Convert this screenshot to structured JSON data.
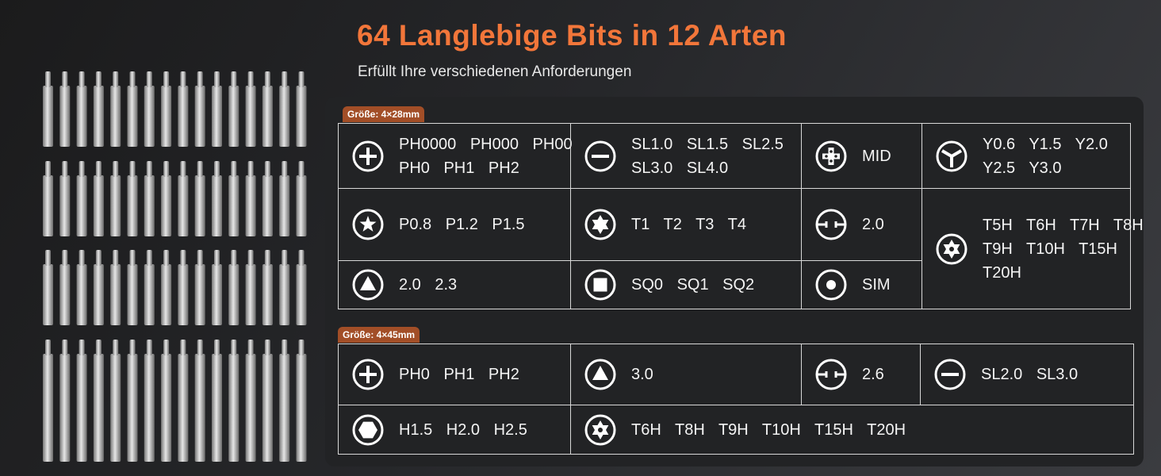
{
  "header": {
    "title": "64 Langlebige Bits in 12 Arten",
    "subtitle": "Erfüllt Ihre verschiedenen Anforderungen"
  },
  "tables": [
    {
      "size": "Größe: 4×28mm",
      "cells": [
        {
          "lines": [
            "PH0000 PH000 PH00",
            "PH0 PH1 PH2"
          ]
        },
        {
          "lines": [
            "SL1.0 SL1.5 SL2.5",
            "SL3.0 SL4.0"
          ]
        },
        {
          "lines": [
            "MID"
          ]
        },
        {
          "lines": [
            "Y0.6 Y1.5 Y2.0",
            "Y2.5 Y3.0"
          ]
        },
        {
          "lines": [
            "P0.8 P1.2 P1.5"
          ]
        },
        {
          "lines": [
            "T1 T2 T3 T4"
          ]
        },
        {
          "lines": [
            "2.0"
          ]
        },
        {
          "lines": [
            "T5H T6H T7H T8H",
            "T9H T10H T15H",
            "T20H"
          ]
        },
        {
          "lines": [
            "2.0 2.3"
          ]
        },
        {
          "lines": [
            "SQ0 SQ1 SQ2"
          ]
        },
        {
          "lines": [
            "SIM"
          ]
        }
      ]
    },
    {
      "size": "Größe: 4×45mm",
      "cells": [
        {
          "lines": [
            "PH0 PH1 PH2"
          ]
        },
        {
          "lines": [
            "3.0"
          ]
        },
        {
          "lines": [
            "2.6"
          ]
        },
        {
          "lines": [
            "SL2.0 SL3.0"
          ]
        },
        {
          "lines": [
            "H1.5 H2.0 H2.5"
          ]
        },
        {
          "lines": [
            "T6H T8H T9H T10H T15H T20H"
          ]
        }
      ]
    }
  ]
}
